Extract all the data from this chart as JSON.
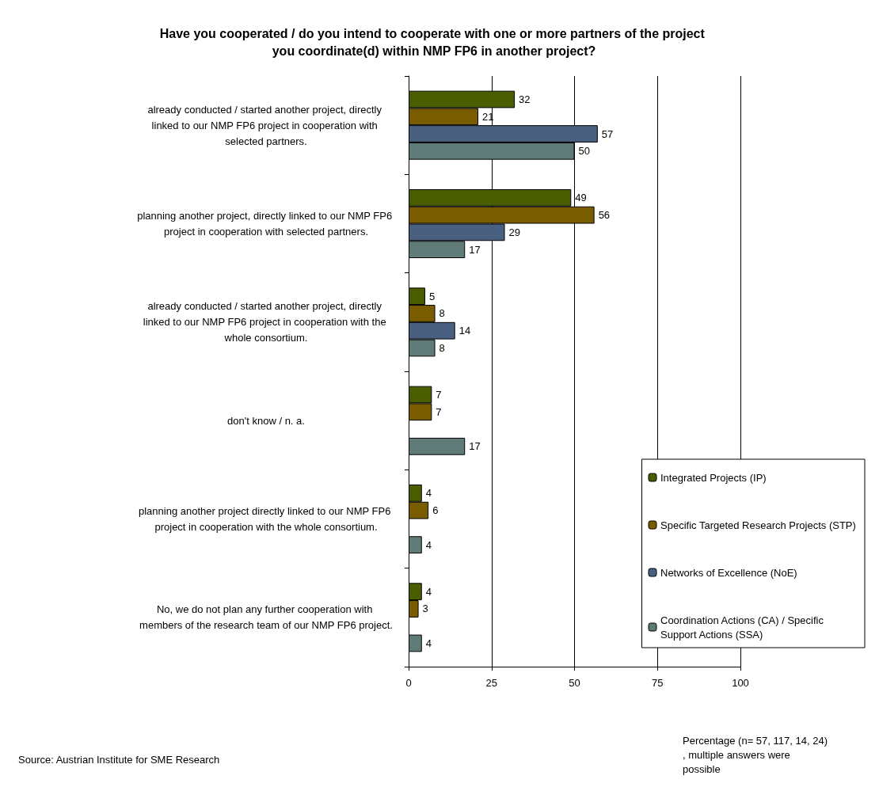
{
  "chart_data": {
    "type": "bar",
    "orientation": "horizontal",
    "title": "Have you cooperated / do you intend to cooperate with one or more partners of the project you coordinate(d) within NMP FP6 in another project?",
    "categories": [
      "already conducted / started another project, directly linked to our NMP FP6 project in cooperation with selected partners.",
      "planning another project, directly linked to our NMP FP6 project in cooperation with selected partners.",
      "already conducted / started another project, directly linked to our NMP FP6 project in cooperation with the whole consortium.",
      "don't know / n. a.",
      "planning another project directly linked to our NMP FP6 project in cooperation with the whole consortium.",
      "No, we do not plan any further cooperation with members of the research team of our NMP FP6 project."
    ],
    "series": [
      {
        "name": "Integrated Projects (IP)",
        "color": "#4a5e00",
        "values": [
          32,
          49,
          5,
          7,
          4,
          4
        ]
      },
      {
        "name": "Specific Targeted Research Projects (STP)",
        "color": "#7a5c00",
        "values": [
          21,
          56,
          8,
          7,
          6,
          3
        ]
      },
      {
        "name": "Networks of Excellence (NoE)",
        "color": "#4a6080",
        "values": [
          57,
          29,
          14,
          null,
          null,
          null
        ]
      },
      {
        "name": "Coordination Actions (CA) / Specific Support Actions (SSA)",
        "color": "#607a78",
        "values": [
          50,
          17,
          8,
          17,
          4,
          4
        ]
      }
    ],
    "xlim": [
      0,
      100
    ],
    "xticks": [
      0,
      25,
      50,
      75,
      100
    ],
    "grid": "x",
    "legend": "bottom right",
    "data_labels": true,
    "xlabel": "Percentage (n= 57, 117, 14, 24), multiple answers were possible",
    "annotations": [
      "Source: Austrian Institute for SME Research"
    ]
  }
}
